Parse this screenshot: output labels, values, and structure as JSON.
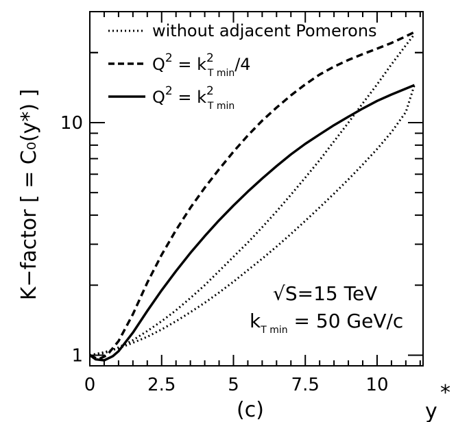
{
  "chart_data": {
    "type": "line",
    "panel_label": "(c)",
    "xlabel": "y*",
    "ylabel": "K−factor [ = C₀(y*) ]",
    "xlim": [
      0,
      11.6
    ],
    "ylim": [
      0.9,
      30
    ],
    "yscale": "log",
    "grid": false,
    "legend_position": "top-left",
    "x_ticks": [
      {
        "value": 0,
        "label": "0"
      },
      {
        "value": 2.5,
        "label": "2.5"
      },
      {
        "value": 5,
        "label": "5"
      },
      {
        "value": 7.5,
        "label": "7.5"
      },
      {
        "value": 10,
        "label": "10"
      }
    ],
    "y_ticks": [
      {
        "value": 1,
        "label": "1"
      },
      {
        "value": 10,
        "label": "10"
      }
    ],
    "legend": [
      {
        "style": "dotted",
        "label": "without adjacent Pomerons"
      },
      {
        "style": "dashed",
        "label": "Q² = k²T min/4"
      },
      {
        "style": "solid",
        "label": "Q² = k²T min"
      }
    ],
    "annotations": [
      {
        "text": "√S=15 TeV"
      },
      {
        "text": "kT min = 50 GeV/c"
      }
    ],
    "series": [
      {
        "name": "Q² = k²T min/4",
        "style": "dashed",
        "x": [
          0,
          0.3,
          0.6,
          1.0,
          1.5,
          2.0,
          2.5,
          3.0,
          3.5,
          4.0,
          4.5,
          5.0,
          5.5,
          6.0,
          6.5,
          7.0,
          7.5,
          8.0,
          8.5,
          9.0,
          9.5,
          10.0,
          10.5,
          11.0,
          11.3
        ],
        "y": [
          1.0,
          0.96,
          1.0,
          1.15,
          1.5,
          2.05,
          2.7,
          3.45,
          4.3,
          5.25,
          6.3,
          7.5,
          8.8,
          10.2,
          11.6,
          13.1,
          14.6,
          16.1,
          17.4,
          18.6,
          19.7,
          20.8,
          22.0,
          23.5,
          24.5
        ]
      },
      {
        "name": "Q² = k²T min",
        "style": "solid",
        "x": [
          0,
          0.2,
          0.5,
          0.8,
          1.0,
          1.5,
          2.0,
          2.5,
          3.0,
          3.5,
          4.0,
          4.5,
          5.0,
          5.5,
          6.0,
          6.5,
          7.0,
          7.5,
          8.0,
          8.5,
          9.0,
          9.5,
          10.0,
          10.5,
          11.0,
          11.3
        ],
        "y": [
          1.0,
          0.96,
          0.95,
          0.99,
          1.04,
          1.25,
          1.55,
          1.9,
          2.3,
          2.75,
          3.25,
          3.8,
          4.4,
          5.05,
          5.75,
          6.5,
          7.3,
          8.1,
          8.9,
          9.75,
          10.6,
          11.5,
          12.4,
          13.2,
          14.0,
          14.5
        ]
      },
      {
        "name": "without adjacent Pomerons (upper)",
        "style": "dotted",
        "x": [
          0,
          0.5,
          1.0,
          1.5,
          2.0,
          2.5,
          3.0,
          3.5,
          4.0,
          4.5,
          5.0,
          5.5,
          6.0,
          6.5,
          7.0,
          7.5,
          8.0,
          8.5,
          9.0,
          9.5,
          10.0,
          10.5,
          11.0,
          11.3
        ],
        "y": [
          1.0,
          1.02,
          1.08,
          1.16,
          1.27,
          1.4,
          1.56,
          1.76,
          2.0,
          2.3,
          2.65,
          3.05,
          3.55,
          4.15,
          4.9,
          5.8,
          6.9,
          8.3,
          10.0,
          12.1,
          14.6,
          17.8,
          21.5,
          24.0
        ]
      },
      {
        "name": "without adjacent Pomerons (lower)",
        "style": "dotted",
        "x": [
          0,
          0.5,
          1.0,
          1.5,
          2.0,
          2.5,
          3.0,
          3.5,
          4.0,
          4.5,
          5.0,
          5.5,
          6.0,
          6.5,
          7.0,
          7.5,
          8.0,
          8.5,
          9.0,
          9.5,
          10.0,
          10.5,
          11.0,
          11.3
        ],
        "y": [
          1.0,
          1.03,
          1.07,
          1.13,
          1.2,
          1.29,
          1.4,
          1.53,
          1.68,
          1.86,
          2.07,
          2.32,
          2.6,
          2.93,
          3.32,
          3.78,
          4.32,
          4.95,
          5.7,
          6.6,
          7.7,
          9.1,
          11.1,
          14.5
        ]
      }
    ]
  }
}
